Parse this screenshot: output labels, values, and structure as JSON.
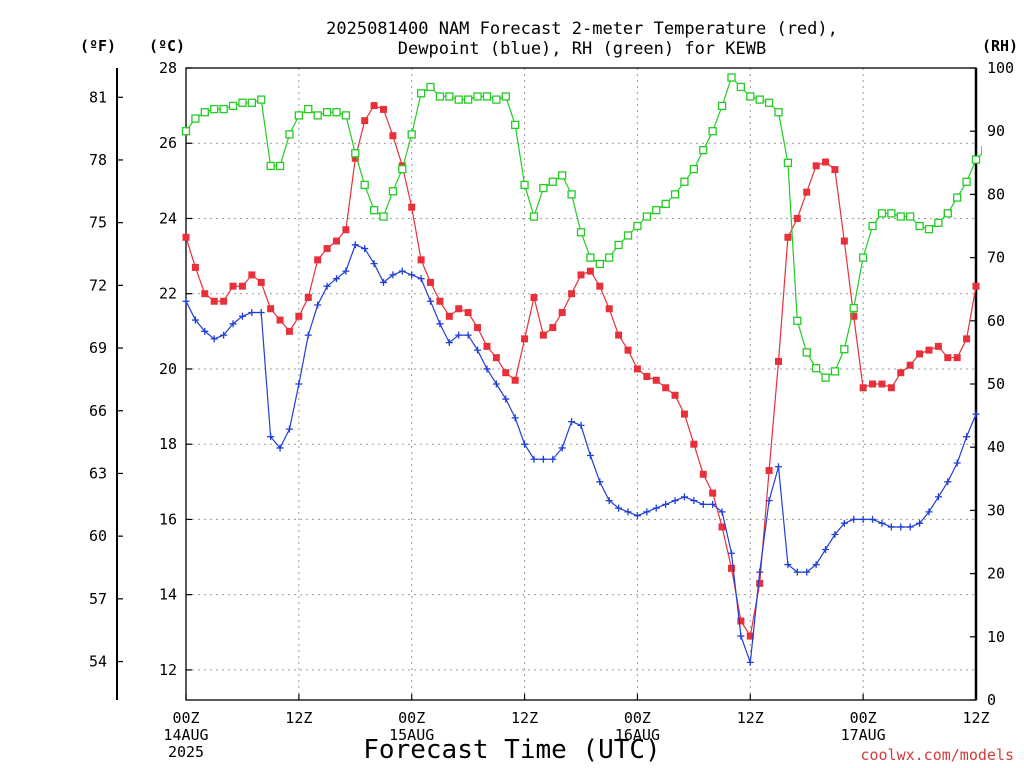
{
  "chart_data": {
    "type": "line",
    "title_line1": "2025081400 NAM Forecast 2-meter Temperature (red),",
    "title_line2": "Dewpoint (blue), RH (green) for KEWB",
    "xlabel": "Forecast Time (UTC)",
    "credit": "coolwx.com/models",
    "unit_f": "(ºF)",
    "unit_c": "(ºC)",
    "unit_rh": "(RH)",
    "x_range_hours": [
      0,
      84
    ],
    "celsius_range": [
      11.2,
      28.0
    ],
    "rh_range": [
      0,
      100
    ],
    "left_f_ticks": [
      "54",
      "57",
      "60",
      "63",
      "66",
      "69",
      "72",
      "75",
      "78",
      "81"
    ],
    "celsius_ticks": [
      "12",
      "14",
      "16",
      "18",
      "20",
      "22",
      "24",
      "26",
      "28"
    ],
    "rh_ticks": [
      "0",
      "10",
      "20",
      "30",
      "40",
      "50",
      "60",
      "70",
      "80",
      "90",
      "100"
    ],
    "x_ticks": [
      {
        "h": 0,
        "l1": "00Z",
        "l2": "14AUG",
        "l3": "2025"
      },
      {
        "h": 12,
        "l1": "12Z",
        "l2": "",
        "l3": ""
      },
      {
        "h": 24,
        "l1": "00Z",
        "l2": "15AUG",
        "l3": ""
      },
      {
        "h": 36,
        "l1": "12Z",
        "l2": "",
        "l3": ""
      },
      {
        "h": 48,
        "l1": "00Z",
        "l2": "16AUG",
        "l3": ""
      },
      {
        "h": 60,
        "l1": "12Z",
        "l2": "",
        "l3": ""
      },
      {
        "h": 72,
        "l1": "00Z",
        "l2": "17AUG",
        "l3": ""
      },
      {
        "h": 84,
        "l1": "12Z",
        "l2": "",
        "l3": ""
      }
    ],
    "grid": true,
    "series": [
      {
        "key": "temperature",
        "color": "#e8303a",
        "marker": "filled-square",
        "unit": "C",
        "points": [
          [
            0,
            23.5
          ],
          [
            1,
            22.7
          ],
          [
            2,
            22.0
          ],
          [
            3,
            21.8
          ],
          [
            4,
            21.8
          ],
          [
            5,
            22.2
          ],
          [
            6,
            22.2
          ],
          [
            7,
            22.5
          ],
          [
            8,
            22.3
          ],
          [
            9,
            21.6
          ],
          [
            10,
            21.3
          ],
          [
            11,
            21.0
          ],
          [
            12,
            21.4
          ],
          [
            13,
            21.9
          ],
          [
            14,
            22.9
          ],
          [
            15,
            23.2
          ],
          [
            16,
            23.4
          ],
          [
            17,
            23.7
          ],
          [
            18,
            25.6
          ],
          [
            19,
            26.6
          ],
          [
            20,
            27.0
          ],
          [
            21,
            26.9
          ],
          [
            22,
            26.2
          ],
          [
            23,
            25.4
          ],
          [
            24,
            24.3
          ],
          [
            25,
            22.9
          ],
          [
            26,
            22.3
          ],
          [
            27,
            21.8
          ],
          [
            28,
            21.4
          ],
          [
            29,
            21.6
          ],
          [
            30,
            21.5
          ],
          [
            31,
            21.1
          ],
          [
            32,
            20.6
          ],
          [
            33,
            20.3
          ],
          [
            34,
            19.9
          ],
          [
            35,
            19.7
          ],
          [
            36,
            20.8
          ],
          [
            37,
            21.9
          ],
          [
            38,
            20.9
          ],
          [
            39,
            21.1
          ],
          [
            40,
            21.5
          ],
          [
            41,
            22.0
          ],
          [
            42,
            22.5
          ],
          [
            43,
            22.6
          ],
          [
            44,
            22.2
          ],
          [
            45,
            21.6
          ],
          [
            46,
            20.9
          ],
          [
            47,
            20.5
          ],
          [
            48,
            20.0
          ],
          [
            49,
            19.8
          ],
          [
            50,
            19.7
          ],
          [
            51,
            19.5
          ],
          [
            52,
            19.3
          ],
          [
            53,
            18.8
          ],
          [
            54,
            18.0
          ],
          [
            55,
            17.2
          ],
          [
            56,
            16.7
          ],
          [
            57,
            15.8
          ],
          [
            58,
            14.7
          ],
          [
            59,
            13.3
          ],
          [
            60,
            12.9
          ],
          [
            61,
            14.3
          ],
          [
            62,
            17.3
          ],
          [
            63,
            20.2
          ],
          [
            64,
            23.5
          ],
          [
            65,
            24.0
          ],
          [
            66,
            24.7
          ],
          [
            67,
            25.4
          ],
          [
            68,
            25.5
          ],
          [
            69,
            25.3
          ],
          [
            70,
            23.4
          ],
          [
            71,
            21.4
          ],
          [
            72,
            19.5
          ],
          [
            73,
            19.6
          ],
          [
            74,
            19.6
          ],
          [
            75,
            19.5
          ],
          [
            76,
            19.9
          ],
          [
            77,
            20.1
          ],
          [
            78,
            20.4
          ],
          [
            79,
            20.5
          ],
          [
            80,
            20.6
          ],
          [
            81,
            20.3
          ],
          [
            82,
            20.3
          ],
          [
            83,
            20.8
          ],
          [
            84,
            22.2
          ]
        ]
      },
      {
        "key": "dewpoint",
        "color": "#1f3fd6",
        "marker": "plus",
        "unit": "C",
        "points": [
          [
            0,
            21.8
          ],
          [
            1,
            21.3
          ],
          [
            2,
            21.0
          ],
          [
            3,
            20.8
          ],
          [
            4,
            20.9
          ],
          [
            5,
            21.2
          ],
          [
            6,
            21.4
          ],
          [
            7,
            21.5
          ],
          [
            8,
            21.5
          ],
          [
            9,
            18.2
          ],
          [
            10,
            17.9
          ],
          [
            11,
            18.4
          ],
          [
            12,
            19.6
          ],
          [
            13,
            20.9
          ],
          [
            14,
            21.7
          ],
          [
            15,
            22.2
          ],
          [
            16,
            22.4
          ],
          [
            17,
            22.6
          ],
          [
            18,
            23.3
          ],
          [
            19,
            23.2
          ],
          [
            20,
            22.8
          ],
          [
            21,
            22.3
          ],
          [
            22,
            22.5
          ],
          [
            23,
            22.6
          ],
          [
            24,
            22.5
          ],
          [
            25,
            22.4
          ],
          [
            26,
            21.8
          ],
          [
            27,
            21.2
          ],
          [
            28,
            20.7
          ],
          [
            29,
            20.9
          ],
          [
            30,
            20.9
          ],
          [
            31,
            20.5
          ],
          [
            32,
            20.0
          ],
          [
            33,
            19.6
          ],
          [
            34,
            19.2
          ],
          [
            35,
            18.7
          ],
          [
            36,
            18.0
          ],
          [
            37,
            17.6
          ],
          [
            38,
            17.6
          ],
          [
            39,
            17.6
          ],
          [
            40,
            17.9
          ],
          [
            41,
            18.6
          ],
          [
            42,
            18.5
          ],
          [
            43,
            17.7
          ],
          [
            44,
            17.0
          ],
          [
            45,
            16.5
          ],
          [
            46,
            16.3
          ],
          [
            47,
            16.2
          ],
          [
            48,
            16.1
          ],
          [
            49,
            16.2
          ],
          [
            50,
            16.3
          ],
          [
            51,
            16.4
          ],
          [
            52,
            16.5
          ],
          [
            53,
            16.6
          ],
          [
            54,
            16.5
          ],
          [
            55,
            16.4
          ],
          [
            56,
            16.4
          ],
          [
            57,
            16.2
          ],
          [
            58,
            15.1
          ],
          [
            59,
            12.9
          ],
          [
            60,
            12.2
          ],
          [
            61,
            14.6
          ],
          [
            62,
            16.5
          ],
          [
            63,
            17.4
          ],
          [
            64,
            14.8
          ],
          [
            65,
            14.6
          ],
          [
            66,
            14.6
          ],
          [
            67,
            14.8
          ],
          [
            68,
            15.2
          ],
          [
            69,
            15.6
          ],
          [
            70,
            15.9
          ],
          [
            71,
            16.0
          ],
          [
            72,
            16.0
          ],
          [
            73,
            16.0
          ],
          [
            74,
            15.9
          ],
          [
            75,
            15.8
          ],
          [
            76,
            15.8
          ],
          [
            77,
            15.8
          ],
          [
            78,
            15.9
          ],
          [
            79,
            16.2
          ],
          [
            80,
            16.6
          ],
          [
            81,
            17.0
          ],
          [
            82,
            17.5
          ],
          [
            83,
            18.2
          ],
          [
            84,
            18.8
          ]
        ]
      },
      {
        "key": "rh",
        "color": "#22cc22",
        "marker": "open-square",
        "unit": "RH",
        "points": [
          [
            0,
            90
          ],
          [
            1,
            92
          ],
          [
            2,
            93
          ],
          [
            3,
            93.5
          ],
          [
            4,
            93.5
          ],
          [
            5,
            94
          ],
          [
            6,
            94.5
          ],
          [
            7,
            94.5
          ],
          [
            8,
            95
          ],
          [
            9,
            84.5
          ],
          [
            10,
            84.5
          ],
          [
            11,
            89.5
          ],
          [
            12,
            92.5
          ],
          [
            13,
            93.5
          ],
          [
            14,
            92.5
          ],
          [
            15,
            93
          ],
          [
            16,
            93
          ],
          [
            17,
            92.5
          ],
          [
            18,
            86.5
          ],
          [
            19,
            81.5
          ],
          [
            20,
            77.5
          ],
          [
            21,
            76.5
          ],
          [
            22,
            80.5
          ],
          [
            23,
            84
          ],
          [
            24,
            89.5
          ],
          [
            25,
            96
          ],
          [
            26,
            97
          ],
          [
            27,
            95.5
          ],
          [
            28,
            95.5
          ],
          [
            29,
            95
          ],
          [
            30,
            95
          ],
          [
            31,
            95.5
          ],
          [
            32,
            95.5
          ],
          [
            33,
            95
          ],
          [
            34,
            95.5
          ],
          [
            35,
            91
          ],
          [
            36,
            81.5
          ],
          [
            37,
            76.5
          ],
          [
            38,
            81
          ],
          [
            39,
            82
          ],
          [
            40,
            83
          ],
          [
            41,
            80
          ],
          [
            42,
            74
          ],
          [
            43,
            70
          ],
          [
            44,
            69
          ],
          [
            45,
            70
          ],
          [
            46,
            72
          ],
          [
            47,
            73.5
          ],
          [
            48,
            75
          ],
          [
            49,
            76.5
          ],
          [
            50,
            77.5
          ],
          [
            51,
            78.5
          ],
          [
            52,
            80
          ],
          [
            53,
            82
          ],
          [
            54,
            84
          ],
          [
            55,
            87
          ],
          [
            56,
            90
          ],
          [
            57,
            94
          ],
          [
            58,
            98.5
          ],
          [
            59,
            97
          ],
          [
            60,
            95.5
          ],
          [
            61,
            95
          ],
          [
            62,
            94.5
          ],
          [
            63,
            93
          ],
          [
            64,
            85
          ],
          [
            65,
            60
          ],
          [
            66,
            55
          ],
          [
            67,
            52.5
          ],
          [
            68,
            51
          ],
          [
            69,
            52
          ],
          [
            70,
            55.5
          ],
          [
            71,
            62
          ],
          [
            72,
            70
          ],
          [
            73,
            75
          ],
          [
            74,
            77
          ],
          [
            75,
            77
          ],
          [
            76,
            76.5
          ],
          [
            77,
            76.5
          ],
          [
            78,
            75
          ],
          [
            79,
            74.5
          ],
          [
            80,
            75.5
          ],
          [
            81,
            77
          ],
          [
            82,
            79.5
          ],
          [
            83,
            82
          ],
          [
            84,
            85.5
          ],
          [
            85,
            87
          ],
          [
            86,
            83
          ]
        ]
      }
    ]
  }
}
